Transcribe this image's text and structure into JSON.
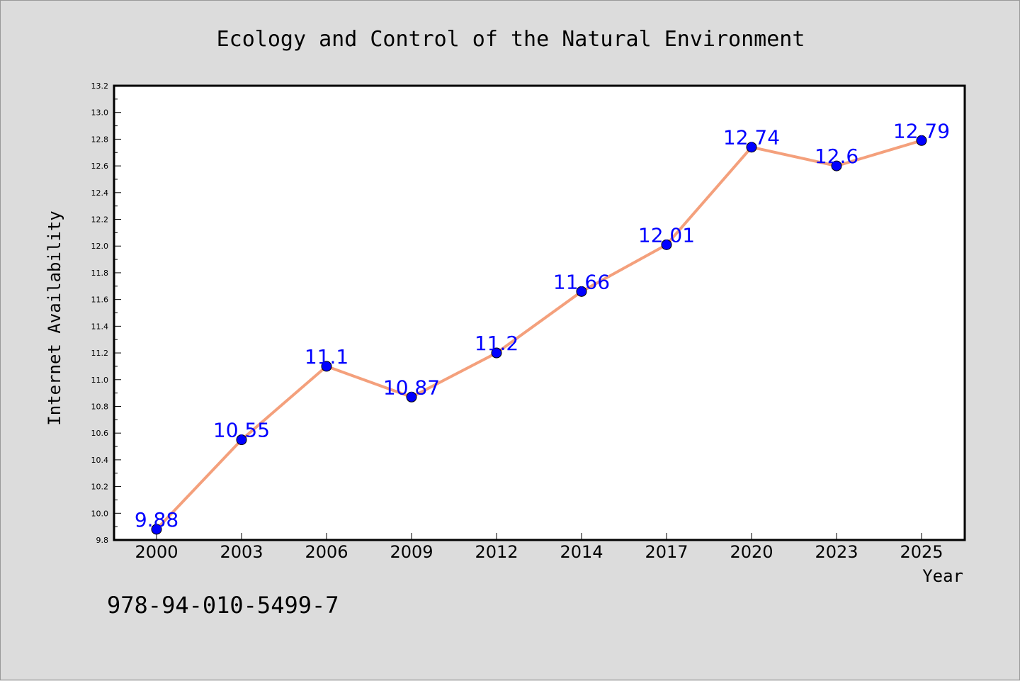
{
  "chart_data": {
    "type": "line",
    "title": "Ecology and Control of the Natural Environment",
    "xlabel": "Year",
    "ylabel": "Internet Availability",
    "categories": [
      "2000",
      "2003",
      "2006",
      "2009",
      "2012",
      "2014",
      "2017",
      "2020",
      "2023",
      "2025"
    ],
    "values": [
      9.88,
      10.55,
      11.1,
      10.87,
      11.2,
      11.66,
      12.01,
      12.74,
      12.6,
      12.79
    ],
    "value_labels": [
      "9.88",
      "10.55",
      "11.1",
      "10.87",
      "11.2",
      "11.66",
      "12.01",
      "12.74",
      "12.6",
      "12.79"
    ],
    "ylim": [
      9.8,
      13.2
    ],
    "yticks": [
      "9.8",
      "10.0",
      "10.2",
      "10.4",
      "10.6",
      "10.8",
      "11.0",
      "11.2",
      "11.4",
      "11.6",
      "11.8",
      "12.0",
      "12.2",
      "12.4",
      "12.6",
      "12.8",
      "13.0",
      "13.2"
    ],
    "grid": false,
    "line_color": "#f4a07c",
    "marker_color": "#0000ff",
    "label_color": "#0000ff"
  },
  "footer": {
    "isbn": "978-94-010-5499-7"
  }
}
